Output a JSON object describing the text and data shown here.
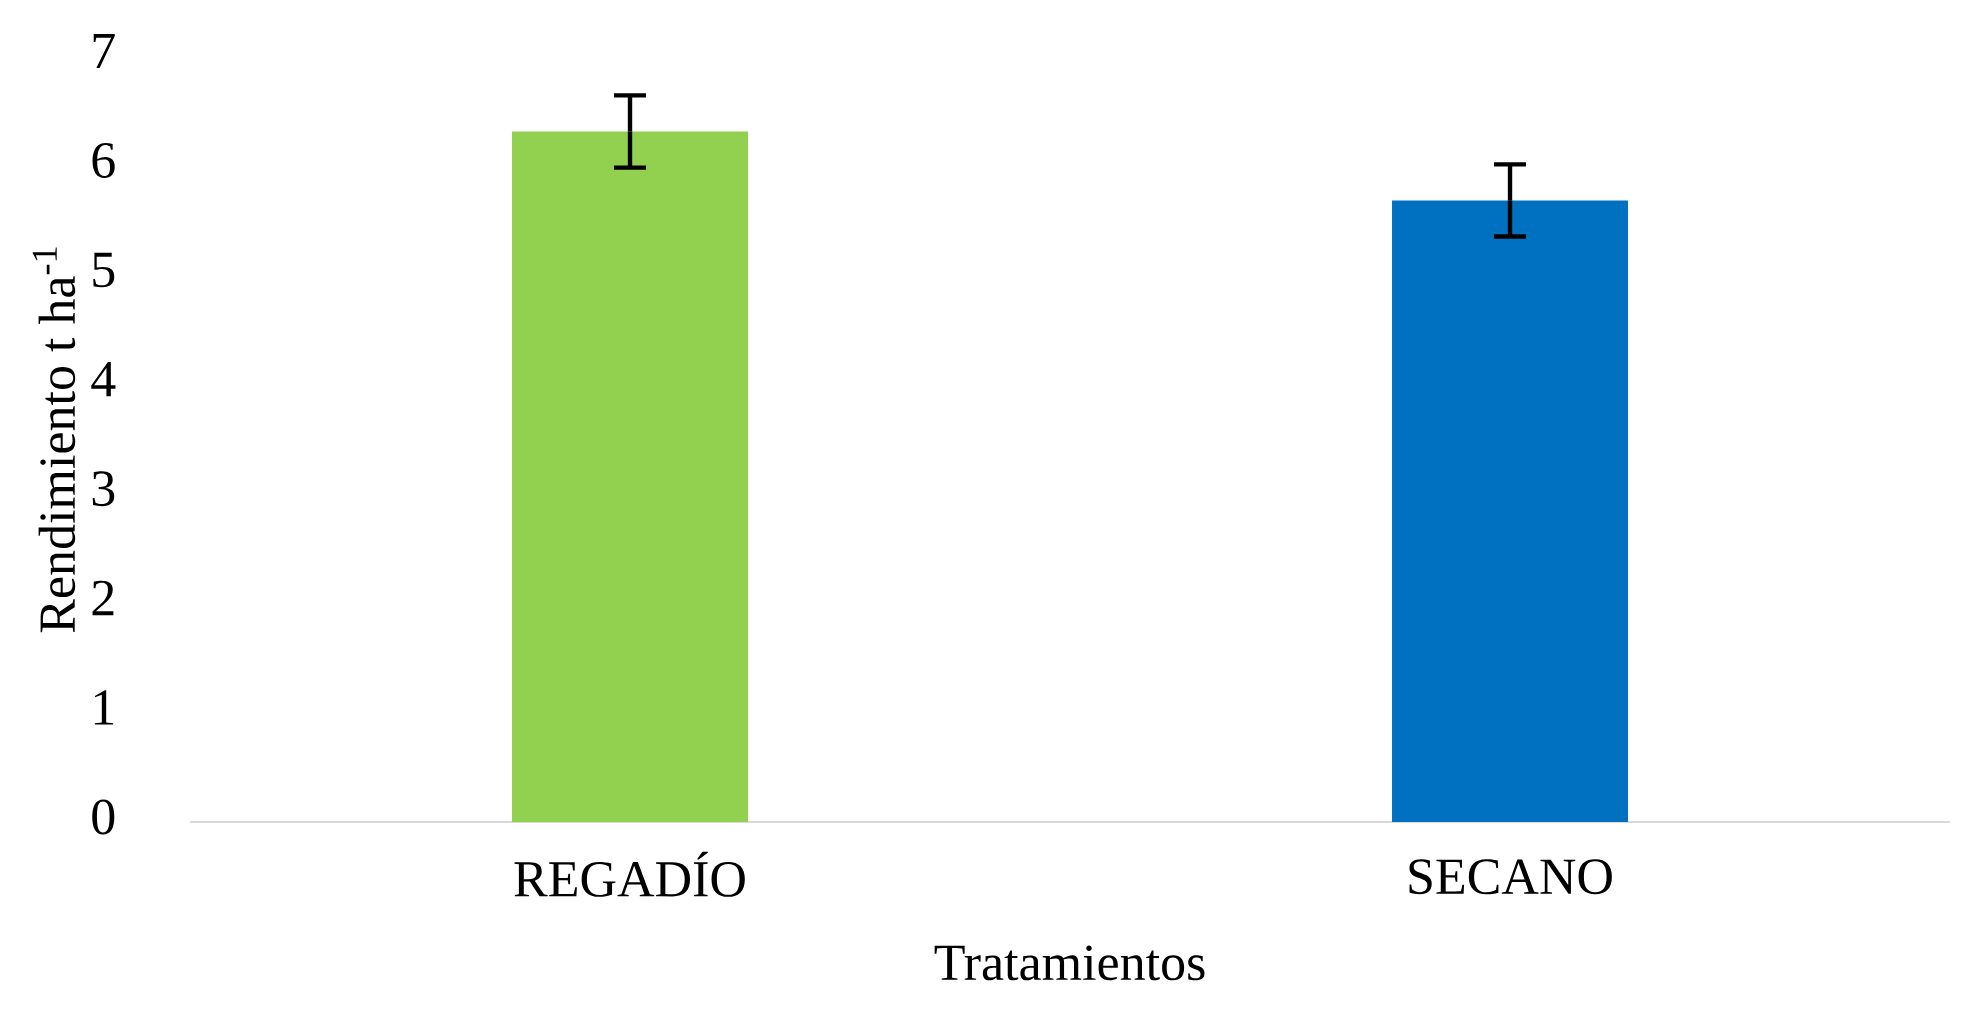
{
  "chart_data": {
    "type": "bar",
    "xlabel": "Tratamientos",
    "ylabel": "Rendimiento t ha$^{-1}$",
    "categories": [
      "REGADÍO",
      "SECANO"
    ],
    "values": [
      6.31,
      5.68
    ],
    "errors": [
      0.33,
      0.33
    ],
    "colors": [
      "#92d050",
      "#0070c0"
    ],
    "ylim": [
      0,
      7
    ],
    "yticks": [
      0,
      1,
      2,
      3,
      4,
      5,
      6,
      7
    ]
  }
}
